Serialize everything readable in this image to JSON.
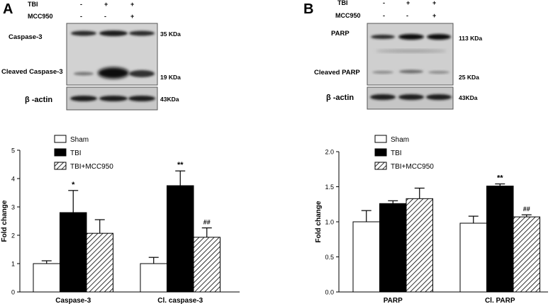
{
  "panel_a": {
    "letter": "A",
    "header": {
      "rows": [
        {
          "label": "TBI",
          "signs": [
            "-",
            "+",
            "+"
          ]
        },
        {
          "label": "MCC950",
          "signs": [
            "-",
            "-",
            "+"
          ]
        }
      ]
    },
    "blots": [
      {
        "label": "Caspase-3",
        "size": "35 KDa"
      },
      {
        "label": "Cleaved Caspase-3",
        "size": "19 KDa"
      },
      {
        "label": "β -actin",
        "size": "43KDa"
      }
    ]
  },
  "panel_b": {
    "letter": "B",
    "header": {
      "rows": [
        {
          "label": "TBI",
          "signs": [
            "-",
            "+",
            "+"
          ]
        },
        {
          "label": "MCC950",
          "signs": [
            "-",
            "-",
            "+"
          ]
        }
      ]
    },
    "blots": [
      {
        "label": "PARP",
        "size": "113 KDa"
      },
      {
        "label": "Cleaved PARP",
        "size": "25 KDa"
      },
      {
        "label": "β -actin",
        "size": "43KDa"
      }
    ]
  },
  "colors": {
    "sham": "#ffffff",
    "tbi": "#000000",
    "tbi_mcc950": "hatched"
  },
  "chart_data": [
    {
      "type": "bar",
      "categories": [
        "Caspase-3",
        "Cl. caspase-3"
      ],
      "series": [
        {
          "name": "Sham",
          "values": [
            1.0,
            1.0
          ],
          "errors": [
            0.1,
            0.22
          ]
        },
        {
          "name": "TBI",
          "values": [
            2.8,
            3.75
          ],
          "errors": [
            0.78,
            0.52
          ]
        },
        {
          "name": "TBI+MCC950",
          "values": [
            2.07,
            1.93
          ],
          "errors": [
            0.48,
            0.33
          ]
        }
      ],
      "annotations": [
        {
          "category": "Caspase-3",
          "series": "TBI",
          "text": "*"
        },
        {
          "category": "Cl. caspase-3",
          "series": "TBI",
          "text": "**"
        },
        {
          "category": "Cl. caspase-3",
          "series": "TBI+MCC950",
          "text": "##"
        }
      ],
      "xlabel": "",
      "ylabel": "Fold change",
      "ylim": [
        0,
        5
      ],
      "yticks": [
        "0",
        "1",
        "2",
        "3",
        "4",
        "5"
      ],
      "legend": "top-left"
    },
    {
      "type": "bar",
      "categories": [
        "PARP",
        "Cl. PARP"
      ],
      "series": [
        {
          "name": "Sham",
          "values": [
            1.0,
            0.98
          ],
          "errors": [
            0.16,
            0.1
          ]
        },
        {
          "name": "TBI",
          "values": [
            1.26,
            1.51
          ],
          "errors": [
            0.04,
            0.03
          ]
        },
        {
          "name": "TBI+MCC950",
          "values": [
            1.33,
            1.07
          ],
          "errors": [
            0.15,
            0.03
          ]
        }
      ],
      "annotations": [
        {
          "category": "Cl. PARP",
          "series": "TBI",
          "text": "**"
        },
        {
          "category": "Cl. PARP",
          "series": "TBI+MCC950",
          "text": "##"
        }
      ],
      "xlabel": "",
      "ylabel": "Fold change",
      "ylim": [
        0,
        2
      ],
      "yticks": [
        "0.0",
        "0.5",
        "1.0",
        "1.5",
        "2.0"
      ],
      "legend": "top-left"
    }
  ]
}
